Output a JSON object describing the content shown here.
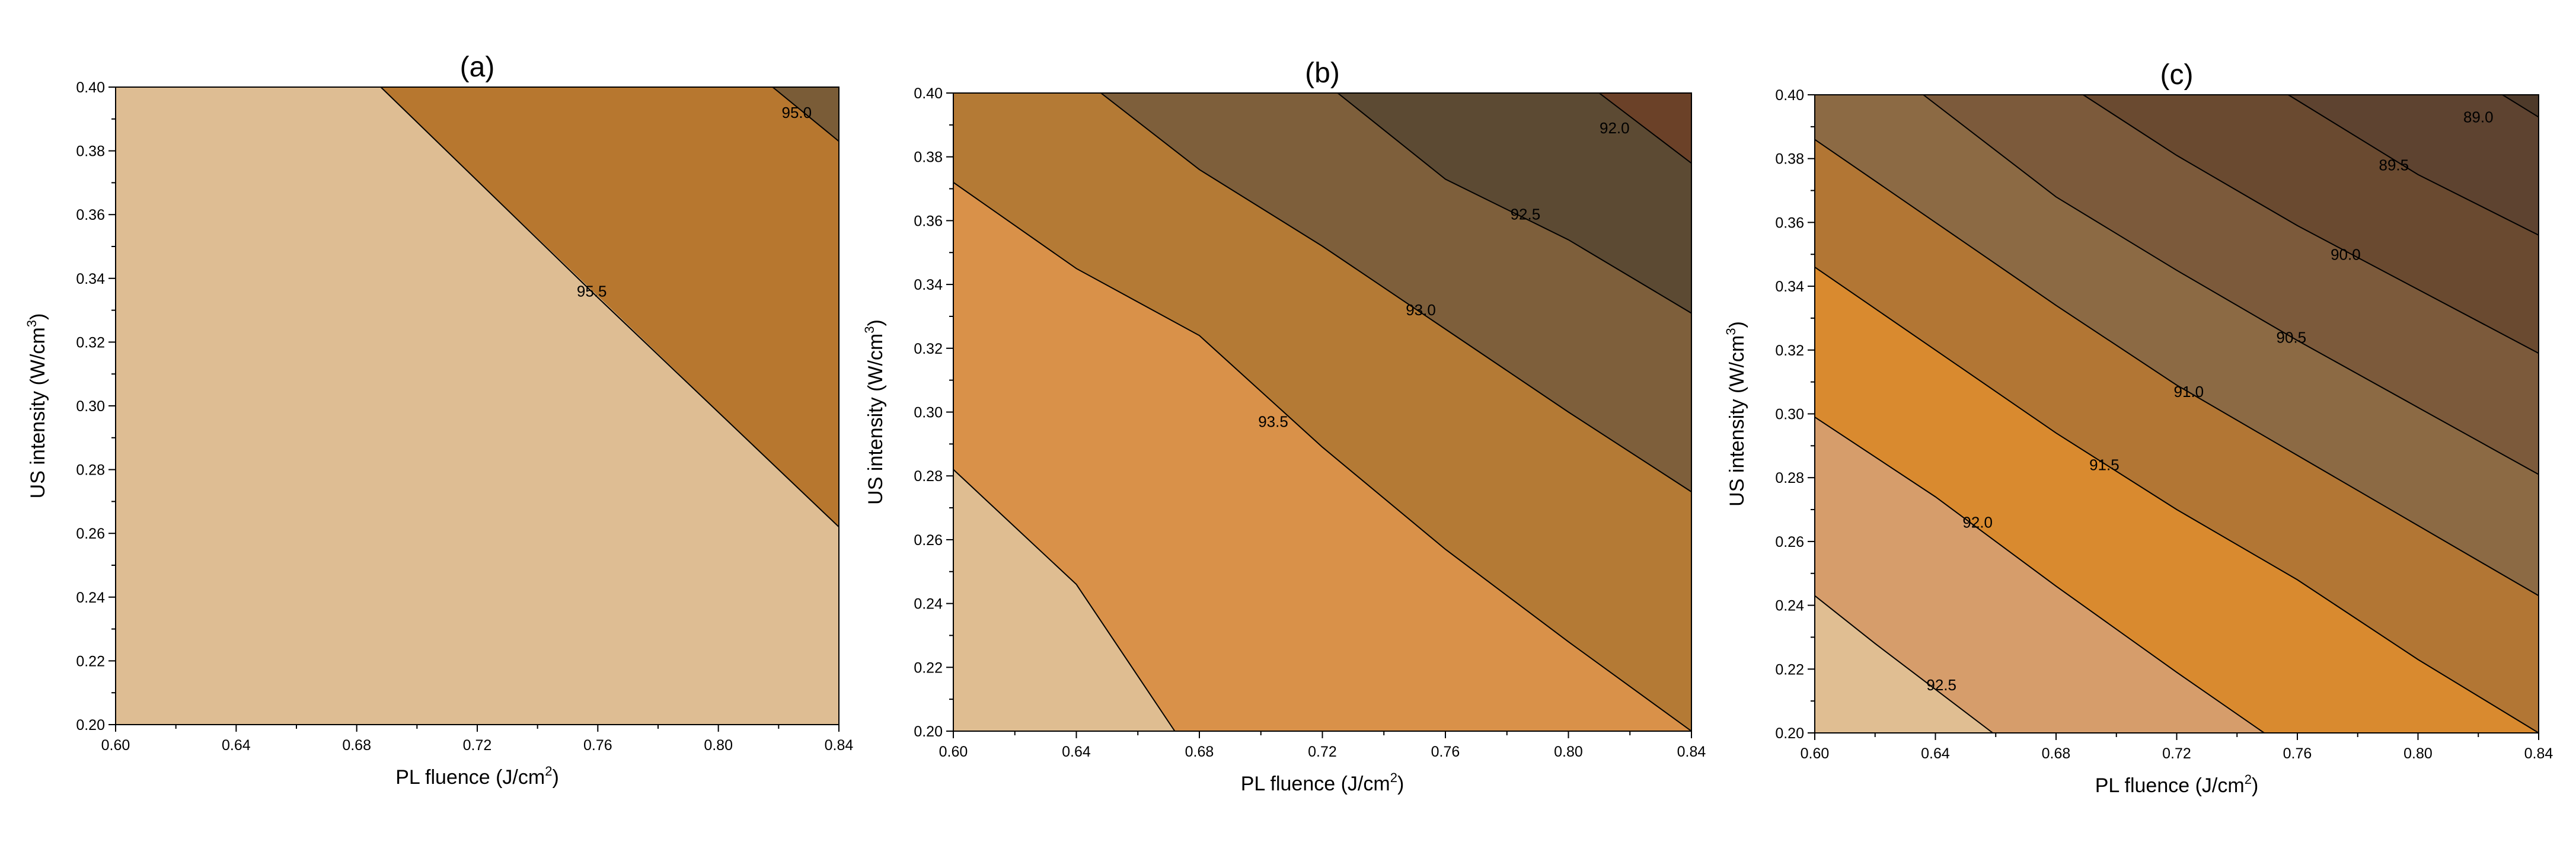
{
  "chart_data": [
    {
      "type": "contour",
      "title": "(a)",
      "xlabel": "PL fluence (J/cm",
      "xlabel_sup": "2",
      "xlabel_end": ")",
      "ylabel": "US intensity (W/cm",
      "ylabel_sup": "3",
      "ylabel_end": ")",
      "xlim": [
        0.6,
        0.84
      ],
      "ylim": [
        0.2,
        0.4
      ],
      "x_ticks": [
        "0.60",
        "0.64",
        "0.68",
        "0.72",
        "0.76",
        "0.80",
        "0.84"
      ],
      "y_ticks": [
        "0.20",
        "0.22",
        "0.24",
        "0.26",
        "0.28",
        "0.30",
        "0.32",
        "0.34",
        "0.36",
        "0.38",
        "0.40"
      ],
      "regions": [
        {
          "color": "#debd93",
          "polygon": [
            [
              0.6,
              0.2
            ],
            [
              0.84,
              0.2
            ],
            [
              0.84,
              0.262
            ],
            [
              0.688,
              0.4
            ],
            [
              0.6,
              0.4
            ]
          ]
        },
        {
          "color": "#b7772f",
          "polygon": [
            [
              0.84,
              0.262
            ],
            [
              0.84,
              0.383
            ],
            [
              0.818,
              0.4
            ],
            [
              0.688,
              0.4
            ]
          ]
        },
        {
          "color": "#7a5c37",
          "polygon": [
            [
              0.818,
              0.4
            ],
            [
              0.84,
              0.383
            ],
            [
              0.84,
              0.4
            ]
          ]
        }
      ],
      "contours": [
        {
          "level": "95.5",
          "points": [
            [
              0.688,
              0.4
            ],
            [
              0.76,
              0.334
            ],
            [
              0.84,
              0.262
            ]
          ],
          "label_at": [
            0.758,
            0.336
          ]
        },
        {
          "level": "95.0",
          "points": [
            [
              0.818,
              0.4
            ],
            [
              0.84,
              0.383
            ]
          ],
          "label_at": [
            0.826,
            0.392
          ]
        }
      ]
    },
    {
      "type": "contour",
      "title": "(b)",
      "xlabel": "PL fluence (J/cm",
      "xlabel_sup": "2",
      "xlabel_end": ")",
      "ylabel": "US intensity (W/cm",
      "ylabel_sup": "3",
      "ylabel_end": ")",
      "xlim": [
        0.6,
        0.84
      ],
      "ylim": [
        0.2,
        0.4
      ],
      "x_ticks": [
        "0.60",
        "0.64",
        "0.68",
        "0.72",
        "0.76",
        "0.80",
        "0.84"
      ],
      "y_ticks": [
        "0.20",
        "0.22",
        "0.24",
        "0.26",
        "0.28",
        "0.30",
        "0.32",
        "0.34",
        "0.36",
        "0.38",
        "0.40"
      ],
      "regions": [
        {
          "color": "#dfbd91",
          "polygon": [
            [
              0.6,
              0.2
            ],
            [
              0.672,
              0.2
            ],
            [
              0.64,
              0.246
            ],
            [
              0.6,
              0.282
            ]
          ]
        },
        {
          "color": "#d99149",
          "polygon": [
            [
              0.6,
              0.282
            ],
            [
              0.64,
              0.246
            ],
            [
              0.672,
              0.2
            ],
            [
              0.84,
              0.2
            ],
            [
              0.84,
              0.2
            ],
            [
              0.8,
              0.228
            ],
            [
              0.76,
              0.257
            ],
            [
              0.72,
              0.289
            ],
            [
              0.68,
              0.324
            ],
            [
              0.64,
              0.345
            ],
            [
              0.6,
              0.372
            ]
          ]
        },
        {
          "color": "#b47a35",
          "polygon": [
            [
              0.6,
              0.372
            ],
            [
              0.64,
              0.345
            ],
            [
              0.68,
              0.324
            ],
            [
              0.72,
              0.289
            ],
            [
              0.76,
              0.257
            ],
            [
              0.8,
              0.228
            ],
            [
              0.84,
              0.2
            ],
            [
              0.84,
              0.275
            ],
            [
              0.8,
              0.3
            ],
            [
              0.76,
              0.326
            ],
            [
              0.72,
              0.352
            ],
            [
              0.68,
              0.376
            ],
            [
              0.648,
              0.4
            ],
            [
              0.6,
              0.4
            ]
          ]
        },
        {
          "color": "#7e5f3b",
          "polygon": [
            [
              0.648,
              0.4
            ],
            [
              0.68,
              0.376
            ],
            [
              0.72,
              0.352
            ],
            [
              0.76,
              0.326
            ],
            [
              0.8,
              0.3
            ],
            [
              0.84,
              0.275
            ],
            [
              0.84,
              0.331
            ],
            [
              0.8,
              0.354
            ],
            [
              0.76,
              0.373
            ],
            [
              0.725,
              0.4
            ]
          ]
        },
        {
          "color": "#5c4a33",
          "polygon": [
            [
              0.725,
              0.4
            ],
            [
              0.76,
              0.373
            ],
            [
              0.8,
              0.354
            ],
            [
              0.84,
              0.331
            ],
            [
              0.84,
              0.378
            ],
            [
              0.81,
              0.4
            ]
          ]
        },
        {
          "color": "#6b4128",
          "polygon": [
            [
              0.81,
              0.4
            ],
            [
              0.84,
              0.378
            ],
            [
              0.84,
              0.4
            ]
          ]
        }
      ],
      "contours": [
        {
          "level": "93.5",
          "points": [
            [
              0.6,
              0.282
            ],
            [
              0.64,
              0.246
            ],
            [
              0.672,
              0.2
            ]
          ],
          "label_at": null
        },
        {
          "level": "93.5",
          "points": [
            [
              0.6,
              0.372
            ],
            [
              0.64,
              0.345
            ],
            [
              0.68,
              0.324
            ],
            [
              0.72,
              0.289
            ],
            [
              0.76,
              0.257
            ],
            [
              0.8,
              0.228
            ],
            [
              0.84,
              0.2
            ]
          ],
          "label_at": [
            0.704,
            0.297
          ]
        },
        {
          "level": "93.0",
          "points": [
            [
              0.648,
              0.4
            ],
            [
              0.68,
              0.376
            ],
            [
              0.72,
              0.352
            ],
            [
              0.76,
              0.326
            ],
            [
              0.8,
              0.3
            ],
            [
              0.84,
              0.275
            ]
          ],
          "label_at": [
            0.752,
            0.332
          ]
        },
        {
          "level": "92.5",
          "points": [
            [
              0.725,
              0.4
            ],
            [
              0.76,
              0.373
            ],
            [
              0.8,
              0.354
            ],
            [
              0.84,
              0.331
            ]
          ],
          "label_at": [
            0.786,
            0.362
          ]
        },
        {
          "level": "92.0",
          "points": [
            [
              0.81,
              0.4
            ],
            [
              0.84,
              0.378
            ]
          ],
          "label_at": [
            0.815,
            0.389
          ]
        }
      ]
    },
    {
      "type": "contour",
      "title": "(c)",
      "xlabel": "PL fluence (J/cm",
      "xlabel_sup": "2",
      "xlabel_end": ")",
      "ylabel": "US intensity (W/cm",
      "ylabel_sup": "3",
      "ylabel_end": ")",
      "xlim": [
        0.6,
        0.84
      ],
      "ylim": [
        0.2,
        0.4
      ],
      "x_ticks": [
        "0.60",
        "0.64",
        "0.68",
        "0.72",
        "0.76",
        "0.80",
        "0.84"
      ],
      "y_ticks": [
        "0.20",
        "0.22",
        "0.24",
        "0.26",
        "0.28",
        "0.30",
        "0.32",
        "0.34",
        "0.36",
        "0.38",
        "0.40"
      ],
      "regions": [
        {
          "color": "#e0be92",
          "polygon": [
            [
              0.6,
              0.2
            ],
            [
              0.659,
              0.2
            ],
            [
              0.62,
              0.228
            ],
            [
              0.6,
              0.243
            ]
          ]
        },
        {
          "color": "#d69d6b",
          "polygon": [
            [
              0.6,
              0.243
            ],
            [
              0.62,
              0.228
            ],
            [
              0.659,
              0.2
            ],
            [
              0.749,
              0.2
            ],
            [
              0.72,
              0.219
            ],
            [
              0.68,
              0.246
            ],
            [
              0.64,
              0.274
            ],
            [
              0.6,
              0.299
            ]
          ]
        },
        {
          "color": "#d98a2f",
          "polygon": [
            [
              0.6,
              0.299
            ],
            [
              0.64,
              0.274
            ],
            [
              0.68,
              0.246
            ],
            [
              0.72,
              0.219
            ],
            [
              0.749,
              0.2
            ],
            [
              0.84,
              0.2
            ],
            [
              0.8,
              0.223
            ],
            [
              0.76,
              0.248
            ],
            [
              0.72,
              0.27
            ],
            [
              0.68,
              0.294
            ],
            [
              0.64,
              0.32
            ],
            [
              0.6,
              0.346
            ]
          ]
        },
        {
          "color": "#b27634",
          "polygon": [
            [
              0.6,
              0.346
            ],
            [
              0.64,
              0.32
            ],
            [
              0.68,
              0.294
            ],
            [
              0.72,
              0.27
            ],
            [
              0.76,
              0.248
            ],
            [
              0.8,
              0.223
            ],
            [
              0.84,
              0.2
            ],
            [
              0.84,
              0.243
            ],
            [
              0.8,
              0.265
            ],
            [
              0.76,
              0.287
            ],
            [
              0.72,
              0.309
            ],
            [
              0.68,
              0.334
            ],
            [
              0.64,
              0.36
            ],
            [
              0.6,
              0.386
            ]
          ]
        },
        {
          "color": "#8c6a44",
          "polygon": [
            [
              0.6,
              0.386
            ],
            [
              0.64,
              0.36
            ],
            [
              0.68,
              0.334
            ],
            [
              0.72,
              0.309
            ],
            [
              0.76,
              0.287
            ],
            [
              0.8,
              0.265
            ],
            [
              0.84,
              0.243
            ],
            [
              0.84,
              0.281
            ],
            [
              0.8,
              0.302
            ],
            [
              0.76,
              0.323
            ],
            [
              0.72,
              0.345
            ],
            [
              0.68,
              0.368
            ],
            [
              0.636,
              0.4
            ],
            [
              0.6,
              0.4
            ]
          ]
        },
        {
          "color": "#7c5a3b",
          "polygon": [
            [
              0.636,
              0.4
            ],
            [
              0.68,
              0.368
            ],
            [
              0.72,
              0.345
            ],
            [
              0.76,
              0.323
            ],
            [
              0.8,
              0.302
            ],
            [
              0.84,
              0.281
            ],
            [
              0.84,
              0.319
            ],
            [
              0.8,
              0.339
            ],
            [
              0.76,
              0.359
            ],
            [
              0.72,
              0.381
            ],
            [
              0.689,
              0.4
            ]
          ]
        },
        {
          "color": "#6a4a30",
          "polygon": [
            [
              0.689,
              0.4
            ],
            [
              0.72,
              0.381
            ],
            [
              0.76,
              0.359
            ],
            [
              0.8,
              0.339
            ],
            [
              0.84,
              0.319
            ],
            [
              0.84,
              0.356
            ],
            [
              0.8,
              0.375
            ],
            [
              0.757,
              0.4
            ]
          ]
        },
        {
          "color": "#5e4330",
          "polygon": [
            [
              0.757,
              0.4
            ],
            [
              0.8,
              0.375
            ],
            [
              0.84,
              0.356
            ],
            [
              0.84,
              0.393
            ],
            [
              0.828,
              0.4
            ]
          ]
        },
        {
          "color": "#4e3a2a",
          "polygon": [
            [
              0.828,
              0.4
            ],
            [
              0.84,
              0.393
            ],
            [
              0.84,
              0.4
            ]
          ]
        }
      ],
      "contours": [
        {
          "level": "92.5",
          "points": [
            [
              0.6,
              0.243
            ],
            [
              0.62,
              0.228
            ],
            [
              0.659,
              0.2
            ]
          ],
          "label_at": [
            0.642,
            0.215
          ]
        },
        {
          "level": "92.0",
          "points": [
            [
              0.6,
              0.299
            ],
            [
              0.64,
              0.274
            ],
            [
              0.68,
              0.246
            ],
            [
              0.72,
              0.219
            ],
            [
              0.749,
              0.2
            ]
          ],
          "label_at": [
            0.654,
            0.266
          ]
        },
        {
          "level": "91.5",
          "points": [
            [
              0.6,
              0.346
            ],
            [
              0.64,
              0.32
            ],
            [
              0.68,
              0.294
            ],
            [
              0.72,
              0.27
            ],
            [
              0.76,
              0.248
            ],
            [
              0.8,
              0.223
            ],
            [
              0.84,
              0.2
            ]
          ],
          "label_at": [
            0.696,
            0.284
          ]
        },
        {
          "level": "91.0",
          "points": [
            [
              0.6,
              0.386
            ],
            [
              0.64,
              0.36
            ],
            [
              0.68,
              0.334
            ],
            [
              0.72,
              0.309
            ],
            [
              0.76,
              0.287
            ],
            [
              0.8,
              0.265
            ],
            [
              0.84,
              0.243
            ]
          ],
          "label_at": [
            0.724,
            0.307
          ]
        },
        {
          "level": "90.5",
          "points": [
            [
              0.636,
              0.4
            ],
            [
              0.68,
              0.368
            ],
            [
              0.72,
              0.345
            ],
            [
              0.76,
              0.323
            ],
            [
              0.8,
              0.302
            ],
            [
              0.84,
              0.281
            ]
          ],
          "label_at": [
            0.758,
            0.324
          ]
        },
        {
          "level": "90.0",
          "points": [
            [
              0.689,
              0.4
            ],
            [
              0.72,
              0.381
            ],
            [
              0.76,
              0.359
            ],
            [
              0.8,
              0.339
            ],
            [
              0.84,
              0.319
            ]
          ],
          "label_at": [
            0.776,
            0.35
          ]
        },
        {
          "level": "89.5",
          "points": [
            [
              0.757,
              0.4
            ],
            [
              0.8,
              0.375
            ],
            [
              0.84,
              0.356
            ]
          ],
          "label_at": [
            0.792,
            0.378
          ]
        },
        {
          "level": "89.0",
          "points": [
            [
              0.828,
              0.4
            ],
            [
              0.84,
              0.393
            ]
          ],
          "label_at": [
            0.82,
            0.393
          ]
        }
      ]
    }
  ]
}
